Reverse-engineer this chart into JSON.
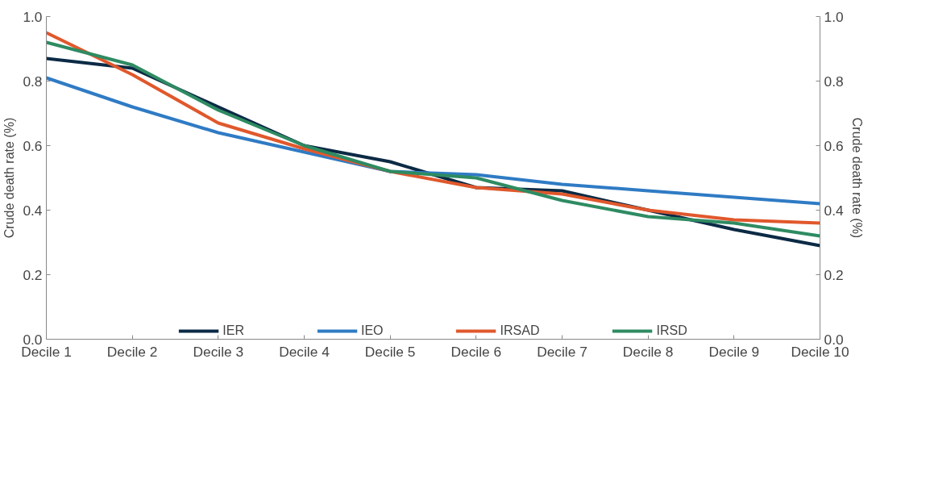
{
  "chart_data": {
    "type": "line",
    "categories": [
      "Decile 1",
      "Decile 2",
      "Decile 3",
      "Decile 4",
      "Decile 5",
      "Decile 6",
      "Decile 7",
      "Decile 8",
      "Decile 9",
      "Decile 10"
    ],
    "ylabel": "Crude death rate (%)",
    "y2label": "Crude death rate (%)",
    "ylim": [
      0,
      1
    ],
    "yticks": [
      {
        "value": 0,
        "label": "0.0"
      },
      0.2,
      0.4,
      0.6,
      0.8,
      {
        "value": 1,
        "label": "1.0"
      }
    ],
    "y2lim": [
      0,
      1
    ],
    "y2ticks": [
      {
        "value": 0,
        "label": "0.0"
      },
      0.2,
      0.4,
      0.6,
      0.8,
      {
        "value": 1,
        "label": "1.0"
      }
    ],
    "series": [
      {
        "name": "IER",
        "color": "#0b2a45",
        "values": [
          0.87,
          0.84,
          0.72,
          0.6,
          0.55,
          0.47,
          0.46,
          0.4,
          0.34,
          0.29
        ]
      },
      {
        "name": "IEO",
        "color": "#2f7bc4",
        "values": [
          0.81,
          0.72,
          0.64,
          0.58,
          0.52,
          0.51,
          0.48,
          0.46,
          0.44,
          0.42
        ]
      },
      {
        "name": "IRSAD",
        "color": "#e0582c",
        "values": [
          0.95,
          0.82,
          0.67,
          0.59,
          0.52,
          0.47,
          0.45,
          0.4,
          0.37,
          0.36
        ]
      },
      {
        "name": "IRSD",
        "color": "#2e8b62",
        "values": [
          0.92,
          0.85,
          0.71,
          0.6,
          0.52,
          0.5,
          0.43,
          0.38,
          0.36,
          0.32
        ]
      }
    ],
    "legend": "bottom",
    "grid": false,
    "marker": "none",
    "line_style": "solid"
  }
}
